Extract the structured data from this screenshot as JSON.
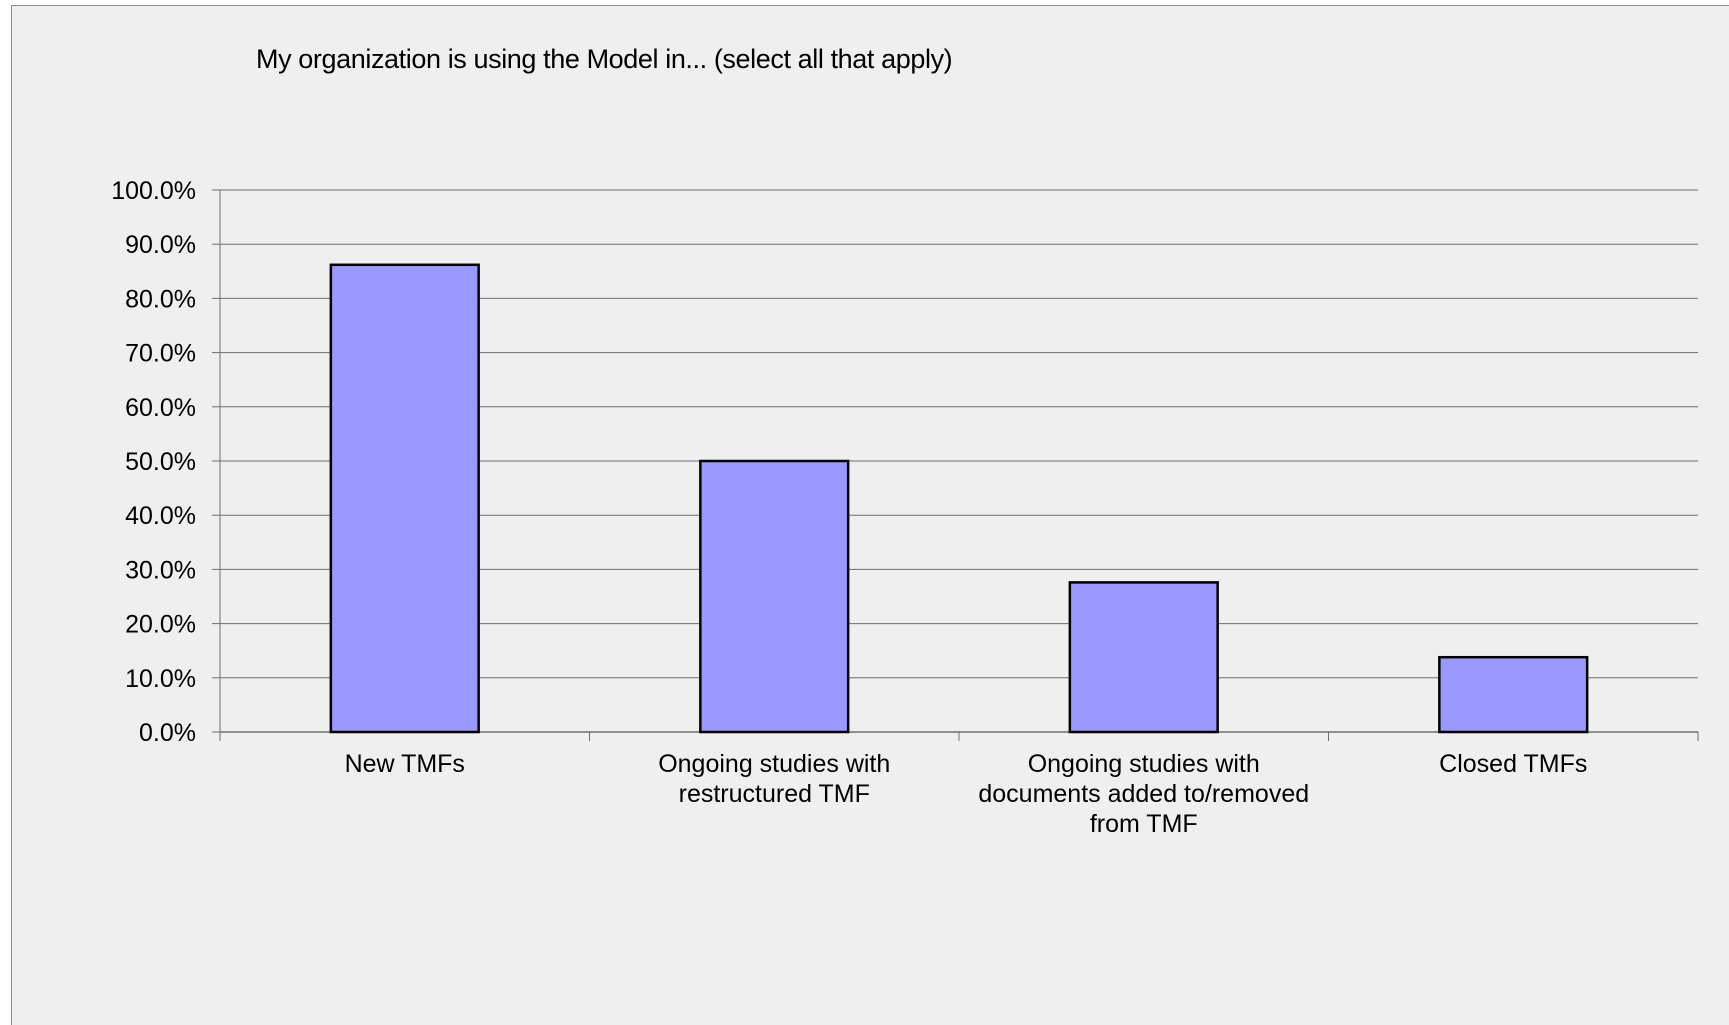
{
  "colors": {
    "background": "#efefef",
    "bar_fill": "#9999ff",
    "bar_stroke": "#000000",
    "gridline": "#6e6e6e"
  },
  "chart_data": {
    "type": "bar",
    "title": "My organization is using the Model in... (select all that apply)",
    "xlabel": "",
    "ylabel": "",
    "categories": [
      [
        "New TMFs"
      ],
      [
        "Ongoing studies with",
        "restructured TMF"
      ],
      [
        "Ongoing studies with",
        "documents added to/removed",
        "from TMF"
      ],
      [
        "Closed TMFs"
      ]
    ],
    "values": [
      86.2,
      50.0,
      27.6,
      13.8
    ],
    "ylim": [
      0,
      100
    ],
    "yticks": [
      0,
      10,
      20,
      30,
      40,
      50,
      60,
      70,
      80,
      90,
      100
    ],
    "ytick_labels": [
      "0.0%",
      "10.0%",
      "20.0%",
      "30.0%",
      "40.0%",
      "50.0%",
      "60.0%",
      "70.0%",
      "80.0%",
      "90.0%",
      "100.0%"
    ],
    "grid": true,
    "legend": "none"
  }
}
